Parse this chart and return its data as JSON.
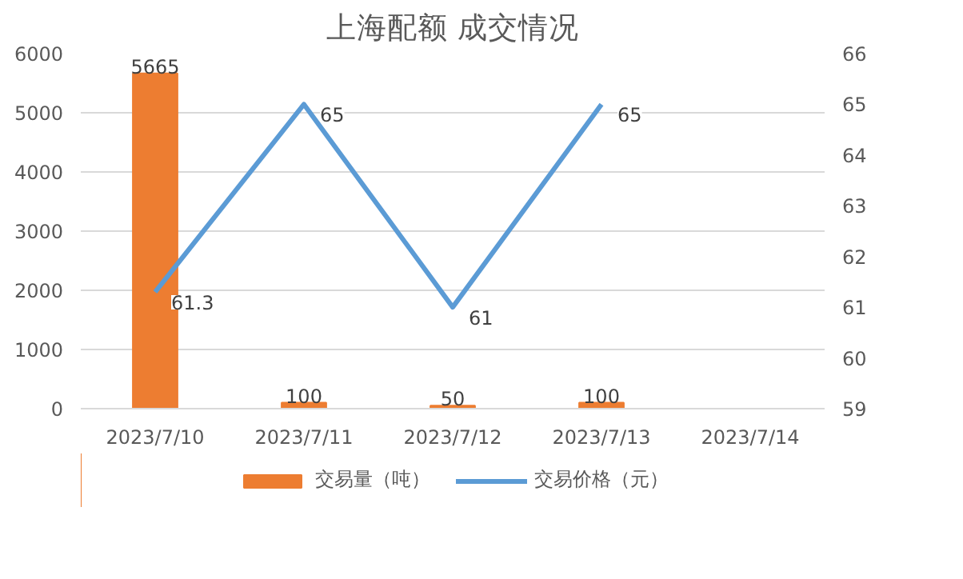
{
  "chart_data": {
    "type": "bar",
    "title": "上海配额 成交情况",
    "categories": [
      "2023/7/10",
      "2023/7/11",
      "2023/7/12",
      "2023/7/13",
      "2023/7/14"
    ],
    "series": [
      {
        "name": "交易量（吨）",
        "color": "#ed7d31",
        "values": [
          5665,
          100,
          50,
          100,
          null
        ]
      },
      {
        "name": "交易价格（元）",
        "type": "line",
        "axis": "y2",
        "color": "#5b9bd5",
        "values": [
          61.3,
          65,
          61,
          65,
          null
        ]
      }
    ],
    "ylim": [
      0,
      6000
    ],
    "yticks": [
      0,
      1000,
      2000,
      3000,
      4000,
      5000,
      6000
    ],
    "y2lim": [
      59,
      66
    ],
    "y2ticks": [
      59,
      60,
      61,
      62,
      63,
      64,
      65,
      66
    ],
    "grid": "y",
    "legend": "bottom",
    "data_labels": true
  }
}
